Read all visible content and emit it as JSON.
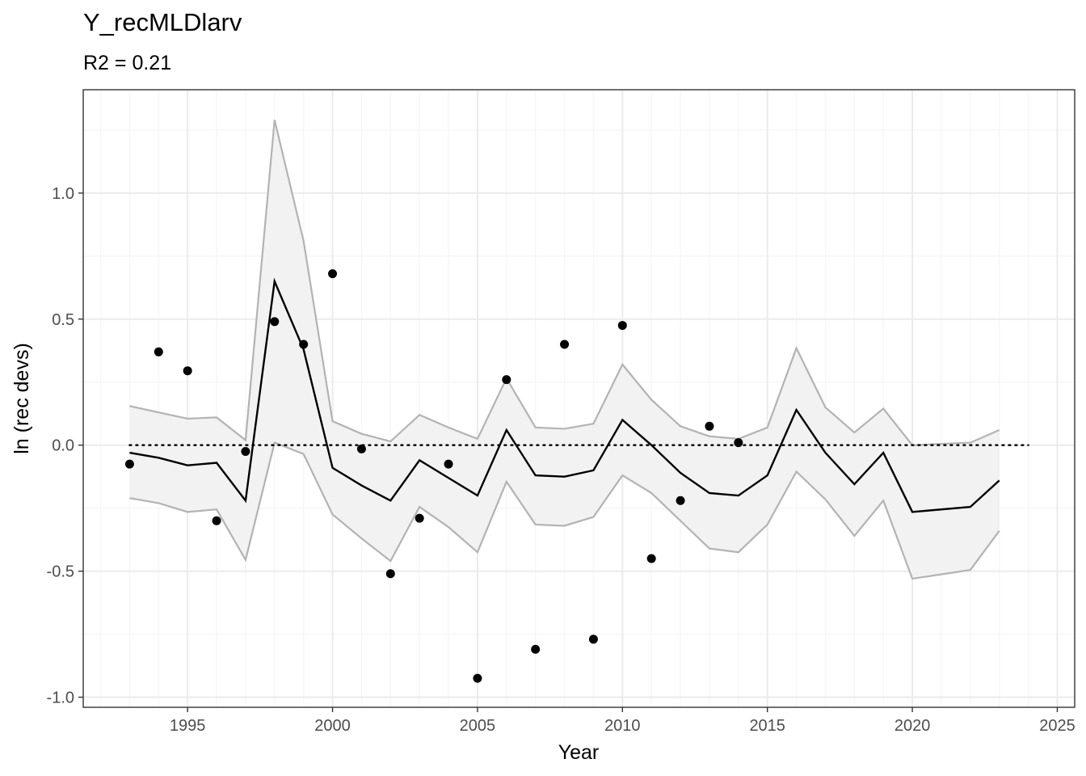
{
  "chart_data": {
    "type": "line",
    "title": "Y_recMLDlarv",
    "subtitle": "R2 = 0.21",
    "xlabel": "Year",
    "ylabel": "ln (rec devs)",
    "xlim": [
      1991.4,
      2025.6
    ],
    "ylim": [
      -1.04,
      1.41
    ],
    "x_ticks": [
      1995,
      2000,
      2005,
      2010,
      2015,
      2020,
      2025
    ],
    "y_ticks": [
      -1.0,
      -0.5,
      0.0,
      0.5,
      1.0
    ],
    "y_tick_labels": [
      "-1.0",
      "-0.5",
      "0.0",
      "0.5",
      "1.0"
    ],
    "grid": true,
    "reference_line": {
      "y": 0,
      "x_range": [
        1993,
        2024
      ],
      "style": "dotted"
    },
    "fit": {
      "x": [
        1993,
        1994,
        1995,
        1996,
        1997,
        1998,
        1999,
        2000,
        2001,
        2002,
        2003,
        2004,
        2005,
        2006,
        2007,
        2008,
        2009,
        2010,
        2011,
        2012,
        2013,
        2014,
        2015,
        2016,
        2017,
        2018,
        2019,
        2020,
        2022,
        2023
      ],
      "mean": [
        -0.03,
        -0.05,
        -0.08,
        -0.07,
        -0.22,
        0.65,
        0.38,
        -0.09,
        -0.16,
        -0.22,
        -0.06,
        -0.13,
        -0.2,
        0.06,
        -0.12,
        -0.125,
        -0.1,
        0.1,
        0.0,
        -0.11,
        -0.19,
        -0.2,
        -0.12,
        0.14,
        -0.03,
        -0.155,
        -0.03,
        -0.265,
        -0.245,
        -0.14
      ],
      "upper": [
        0.155,
        0.13,
        0.105,
        0.11,
        0.02,
        1.29,
        0.81,
        0.095,
        0.045,
        0.015,
        0.12,
        0.07,
        0.025,
        0.265,
        0.07,
        0.065,
        0.085,
        0.32,
        0.18,
        0.075,
        0.035,
        0.025,
        0.07,
        0.385,
        0.15,
        0.05,
        0.145,
        0.0,
        0.01,
        0.06
      ],
      "lower": [
        -0.21,
        -0.23,
        -0.265,
        -0.255,
        -0.455,
        0.01,
        -0.035,
        -0.275,
        -0.37,
        -0.46,
        -0.245,
        -0.325,
        -0.425,
        -0.145,
        -0.315,
        -0.32,
        -0.285,
        -0.12,
        -0.19,
        -0.3,
        -0.41,
        -0.425,
        -0.315,
        -0.105,
        -0.215,
        -0.36,
        -0.22,
        -0.53,
        -0.495,
        -0.34
      ]
    },
    "points": {
      "x": [
        1993,
        1994,
        1995,
        1996,
        1997,
        1998,
        1999,
        2000,
        2001,
        2002,
        2003,
        2004,
        2005,
        2006,
        2007,
        2008,
        2009,
        2010,
        2011,
        2012,
        2013,
        2014
      ],
      "y": [
        -0.075,
        0.37,
        0.295,
        -0.3,
        -0.025,
        0.49,
        0.4,
        0.68,
        -0.015,
        -0.51,
        -0.29,
        -0.075,
        -0.925,
        0.26,
        -0.81,
        0.4,
        -0.77,
        0.475,
        -0.45,
        -0.22,
        0.075,
        0.01
      ]
    },
    "colors": {
      "band_fill": "#f2f2f2",
      "band_edge": "#b3b3b3",
      "mean_line": "#000000",
      "points": "#000000",
      "grid_major": "#ebebeb",
      "grid_minor": "#f5f5f5",
      "panel_border": "#333333"
    }
  }
}
